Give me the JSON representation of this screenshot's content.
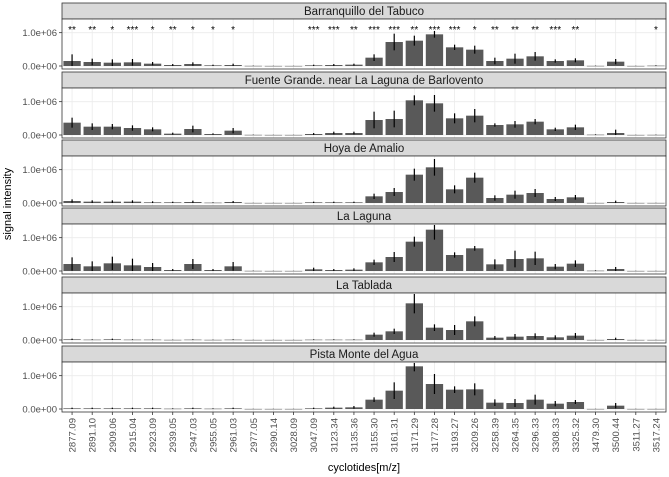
{
  "chart_data": {
    "type": "bar",
    "xlabel": "cyclotides[m/z]",
    "ylabel": "signal intensity",
    "y_ticks": [
      {
        "value": 0,
        "label": "0.0e+00"
      },
      {
        "value": 1000000,
        "label": "1.0e+06"
      }
    ],
    "ylim": [
      0,
      1350000
    ],
    "grid": true,
    "colors": {
      "bar": "#595959",
      "panel_bg": "#ffffff",
      "strip_bg": "#d9d9d9",
      "grid": "#ebebeb"
    },
    "categories": [
      "2877.09",
      "2891.10",
      "2909.06",
      "2915.04",
      "2923.09",
      "2939.05",
      "2947.03",
      "2955.05",
      "2961.03",
      "2977.05",
      "2990.14",
      "3028.09",
      "3047.09",
      "3123.34",
      "3135.36",
      "3155.30",
      "3161.31",
      "3171.29",
      "3177.28",
      "3193.27",
      "3209.26",
      "3258.39",
      "3264.35",
      "3296.33",
      "3308.33",
      "3325.32",
      "3479.30",
      "3500.44",
      "3511.27",
      "3517.24"
    ],
    "panels": [
      {
        "name": "Barranquillo del Tabuco",
        "values": [
          150000,
          120000,
          100000,
          110000,
          70000,
          30000,
          60000,
          20000,
          30000,
          5000,
          3000,
          3000,
          20000,
          30000,
          40000,
          250000,
          720000,
          760000,
          950000,
          560000,
          490000,
          150000,
          220000,
          290000,
          150000,
          170000,
          5000,
          130000,
          3000,
          10000
        ],
        "errors": [
          200000,
          100000,
          100000,
          100000,
          50000,
          30000,
          50000,
          20000,
          40000,
          5000,
          3000,
          3000,
          20000,
          30000,
          30000,
          100000,
          250000,
          150000,
          100000,
          80000,
          120000,
          100000,
          150000,
          130000,
          50000,
          60000,
          5000,
          80000,
          3000,
          10000
        ],
        "significance": [
          "**",
          "**",
          "*",
          "***",
          "*",
          "**",
          "*",
          "*",
          "*",
          "",
          "",
          "",
          "***",
          "***",
          "**",
          "***",
          "***",
          "**",
          "***",
          "***",
          "*",
          "**",
          "**",
          "**",
          "***",
          "**",
          "",
          "",
          "",
          "*"
        ]
      },
      {
        "name": "Fuente Grande. near La Laguna de Barlovento",
        "values": [
          370000,
          250000,
          250000,
          210000,
          170000,
          40000,
          180000,
          30000,
          130000,
          5000,
          3000,
          3000,
          30000,
          60000,
          60000,
          450000,
          480000,
          1040000,
          950000,
          500000,
          580000,
          300000,
          320000,
          400000,
          170000,
          230000,
          10000,
          60000,
          3000,
          5000
        ],
        "errors": [
          150000,
          100000,
          80000,
          80000,
          60000,
          30000,
          100000,
          20000,
          80000,
          5000,
          3000,
          3000,
          30000,
          40000,
          40000,
          250000,
          250000,
          150000,
          250000,
          150000,
          200000,
          50000,
          100000,
          80000,
          50000,
          80000,
          10000,
          100000,
          3000,
          5000
        ],
        "significance": []
      },
      {
        "name": "Hoya de Amalio",
        "values": [
          60000,
          40000,
          40000,
          40000,
          20000,
          20000,
          30000,
          10000,
          30000,
          3000,
          3000,
          3000,
          20000,
          20000,
          20000,
          200000,
          330000,
          850000,
          1070000,
          410000,
          760000,
          150000,
          250000,
          300000,
          120000,
          170000,
          3000,
          30000,
          3000,
          3000
        ],
        "errors": [
          50000,
          40000,
          40000,
          40000,
          30000,
          20000,
          40000,
          10000,
          30000,
          3000,
          3000,
          3000,
          20000,
          20000,
          20000,
          80000,
          120000,
          180000,
          250000,
          120000,
          150000,
          80000,
          120000,
          120000,
          60000,
          70000,
          3000,
          40000,
          3000,
          3000
        ],
        "significance": []
      },
      {
        "name": "La Laguna",
        "values": [
          210000,
          140000,
          230000,
          170000,
          120000,
          30000,
          210000,
          30000,
          140000,
          5000,
          3000,
          3000,
          50000,
          30000,
          40000,
          260000,
          420000,
          880000,
          1240000,
          480000,
          680000,
          200000,
          360000,
          380000,
          130000,
          220000,
          10000,
          60000,
          3000,
          3000
        ],
        "errors": [
          200000,
          150000,
          200000,
          200000,
          120000,
          30000,
          150000,
          30000,
          130000,
          5000,
          3000,
          3000,
          50000,
          30000,
          40000,
          80000,
          150000,
          150000,
          300000,
          80000,
          70000,
          150000,
          250000,
          200000,
          80000,
          100000,
          10000,
          60000,
          3000,
          3000
        ],
        "significance": []
      },
      {
        "name": "La Tablada",
        "values": [
          20000,
          10000,
          20000,
          10000,
          10000,
          5000,
          10000,
          5000,
          10000,
          3000,
          3000,
          3000,
          10000,
          10000,
          10000,
          160000,
          260000,
          1100000,
          370000,
          300000,
          560000,
          70000,
          100000,
          120000,
          80000,
          130000,
          3000,
          30000,
          3000,
          3000
        ],
        "errors": [
          20000,
          10000,
          20000,
          10000,
          10000,
          5000,
          10000,
          5000,
          10000,
          3000,
          3000,
          3000,
          10000,
          10000,
          10000,
          60000,
          80000,
          300000,
          100000,
          150000,
          150000,
          50000,
          80000,
          80000,
          60000,
          80000,
          3000,
          40000,
          3000,
          3000
        ],
        "significance": []
      },
      {
        "name": "Pista Monte del Agua",
        "values": [
          20000,
          20000,
          20000,
          20000,
          20000,
          10000,
          20000,
          10000,
          20000,
          3000,
          3000,
          3000,
          20000,
          40000,
          50000,
          280000,
          550000,
          1280000,
          750000,
          580000,
          590000,
          190000,
          180000,
          280000,
          160000,
          210000,
          3000,
          100000,
          3000,
          3000
        ],
        "errors": [
          20000,
          20000,
          20000,
          20000,
          20000,
          10000,
          20000,
          10000,
          20000,
          3000,
          3000,
          3000,
          20000,
          30000,
          40000,
          70000,
          250000,
          150000,
          300000,
          100000,
          180000,
          100000,
          120000,
          150000,
          80000,
          60000,
          3000,
          80000,
          3000,
          3000
        ],
        "significance": []
      }
    ]
  }
}
